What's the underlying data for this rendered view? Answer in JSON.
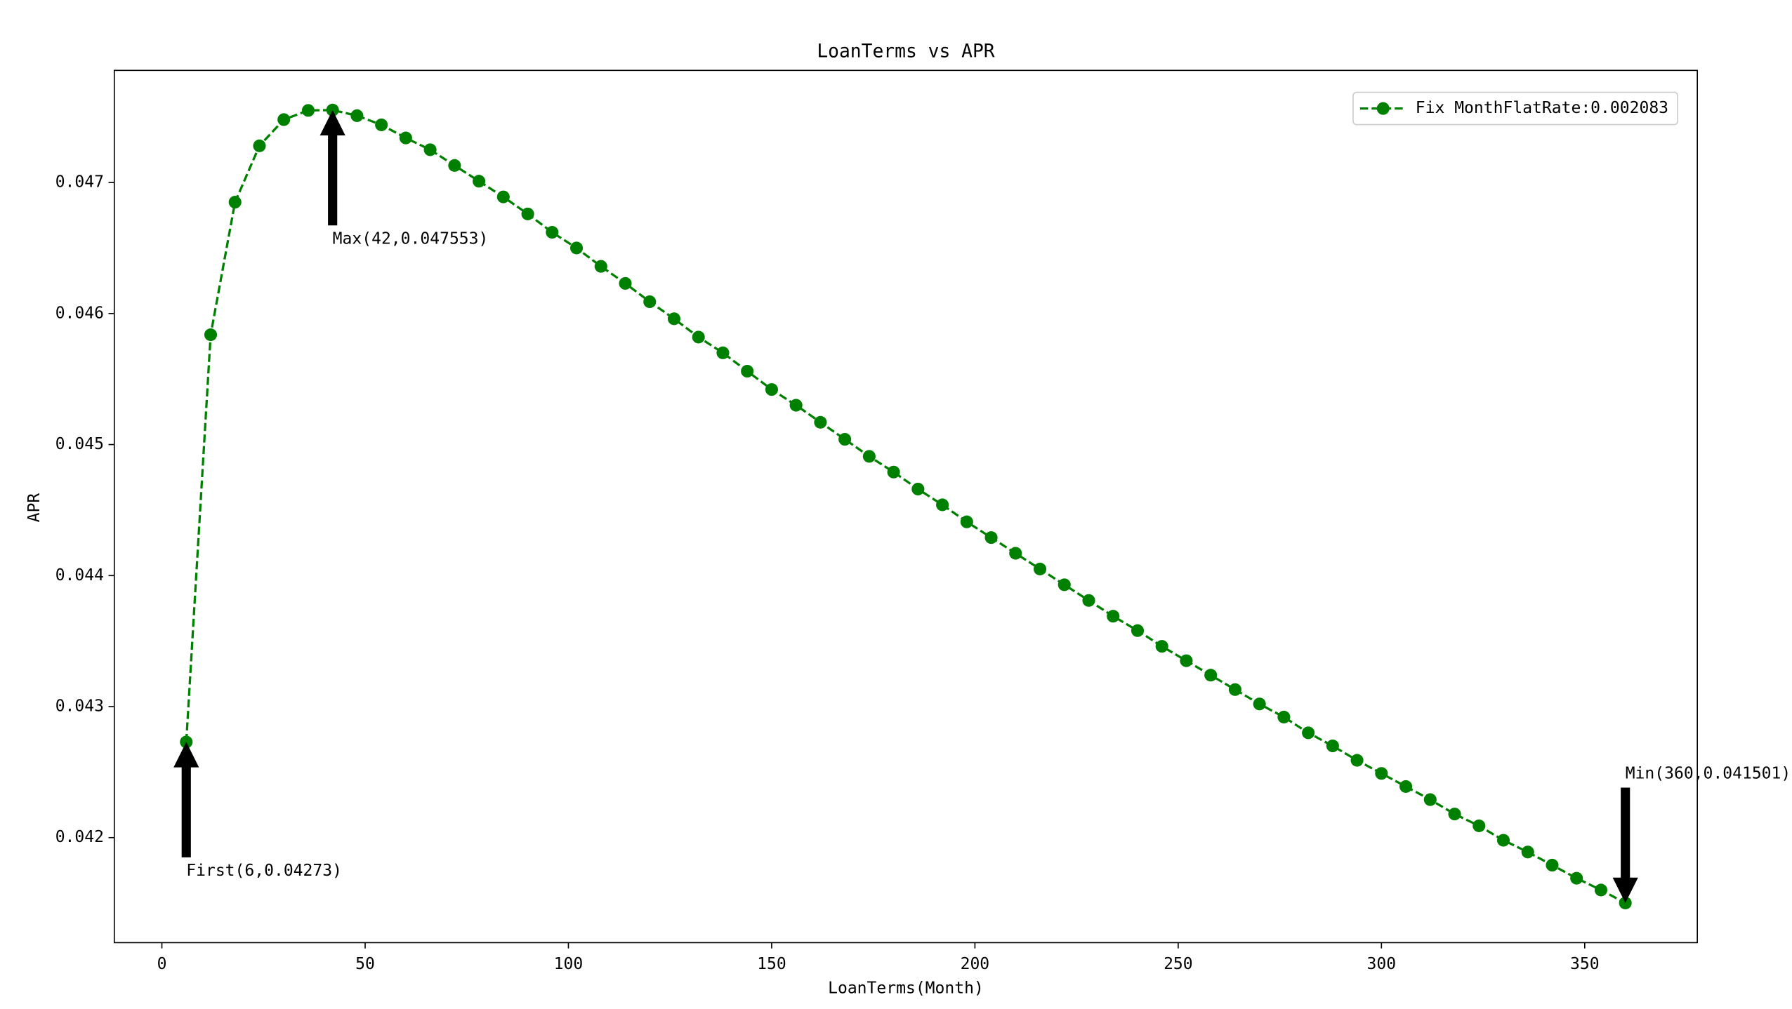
{
  "chart_data": {
    "type": "line",
    "title": "LoanTerms vs APR",
    "xlabel": "LoanTerms(Month)",
    "ylabel": "APR",
    "x": [
      6,
      12,
      18,
      24,
      30,
      36,
      42,
      48,
      54,
      60,
      66,
      72,
      78,
      84,
      90,
      96,
      102,
      108,
      114,
      120,
      126,
      132,
      138,
      144,
      150,
      156,
      162,
      168,
      174,
      180,
      186,
      192,
      198,
      204,
      210,
      216,
      222,
      228,
      234,
      240,
      246,
      252,
      258,
      264,
      270,
      276,
      282,
      288,
      294,
      300,
      306,
      312,
      318,
      324,
      330,
      336,
      342,
      348,
      354,
      360
    ],
    "series": [
      {
        "name": "Fix MonthFlatRate:0.002083",
        "color": "#008000",
        "values": [
          0.04273,
          0.045838,
          0.04685,
          0.04728,
          0.04748,
          0.04755,
          0.047553,
          0.04751,
          0.04744,
          0.04734,
          0.04725,
          0.04713,
          0.04701,
          0.04689,
          0.04676,
          0.04662,
          0.0465,
          0.04636,
          0.04623,
          0.04609,
          0.04596,
          0.04582,
          0.0457,
          0.04556,
          0.04542,
          0.0453,
          0.04517,
          0.04504,
          0.04491,
          0.04479,
          0.04466,
          0.04454,
          0.04441,
          0.04429,
          0.04417,
          0.04405,
          0.04393,
          0.04381,
          0.04369,
          0.04358,
          0.04346,
          0.04335,
          0.04324,
          0.04313,
          0.04302,
          0.04292,
          0.0428,
          0.0427,
          0.04259,
          0.04249,
          0.04239,
          0.04229,
          0.04218,
          0.04209,
          0.04198,
          0.04189,
          0.04179,
          0.04169,
          0.0416,
          0.041501
        ]
      }
    ],
    "xlim": [
      -11.7,
      377.7
    ],
    "xticks": [
      0,
      50,
      100,
      150,
      200,
      250,
      300,
      350
    ],
    "ylim": [
      0.0411984,
      0.0478556
    ],
    "yticks": [
      0.042,
      0.043,
      0.044,
      0.045,
      0.046,
      0.047
    ],
    "legend": "upper right",
    "annotations": [
      {
        "text": "First(6,0.04273)",
        "x": 6,
        "y": 0.04273
      },
      {
        "text": "Max(42,0.047553)",
        "x": 42,
        "y": 0.047553
      },
      {
        "text": "Min(360,0.041501)",
        "x": 360,
        "y": 0.041501
      }
    ]
  }
}
